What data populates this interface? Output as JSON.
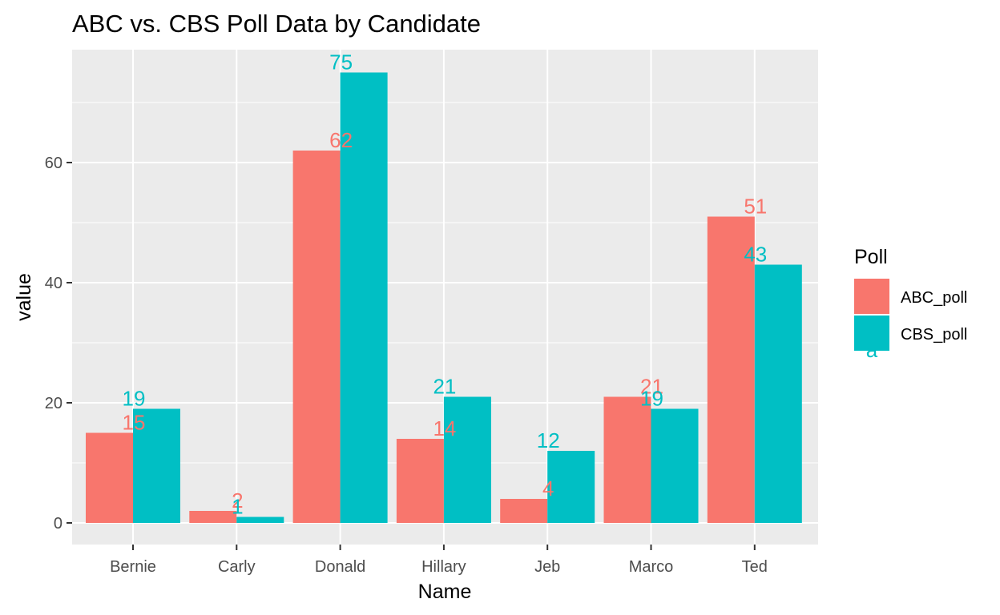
{
  "chart_data": {
    "type": "bar",
    "title": "ABC vs. CBS Poll Data by Candidate",
    "xlabel": "Name",
    "ylabel": "value",
    "categories": [
      "Bernie",
      "Carly",
      "Donald",
      "Hillary",
      "Jeb",
      "Marco",
      "Ted"
    ],
    "series": [
      {
        "name": "ABC_poll",
        "values": [
          15,
          2,
          62,
          14,
          4,
          21,
          51
        ],
        "color": "#f8766d"
      },
      {
        "name": "CBS_poll",
        "values": [
          19,
          1,
          75,
          21,
          12,
          19,
          43
        ],
        "color": "#00bfc4"
      }
    ],
    "ylim": [
      -3.75,
      78.75
    ],
    "yticks": [
      0,
      20,
      40,
      60
    ],
    "grid": true,
    "panel_background": "#ebebeb",
    "legend": {
      "title": "Poll",
      "placement": "right",
      "stray_glyph": "a"
    }
  }
}
